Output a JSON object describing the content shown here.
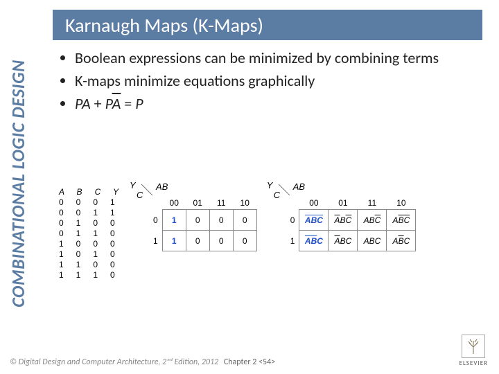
{
  "sidebar_title": "COMBINATIONAL LOGIC DESIGN",
  "title": "Karnaugh Maps (K-Maps)",
  "bullets": [
    "Boolean expressions can be minimized by combining terms",
    "K-maps minimize equations graphically"
  ],
  "equation": {
    "lhs1": "PA",
    "plus": " + ",
    "lhs2_P": "P",
    "lhs2_Abar": "A",
    "eq": " = ",
    "rhs": "P"
  },
  "truth": {
    "headers": [
      "A",
      "B",
      "C",
      "Y"
    ],
    "rows": [
      [
        "0",
        "0",
        "0",
        "1"
      ],
      [
        "0",
        "0",
        "1",
        "1"
      ],
      [
        "0",
        "1",
        "0",
        "0"
      ],
      [
        "0",
        "1",
        "1",
        "0"
      ],
      [
        "1",
        "0",
        "0",
        "0"
      ],
      [
        "1",
        "0",
        "1",
        "0"
      ],
      [
        "1",
        "1",
        "0",
        "0"
      ],
      [
        "1",
        "1",
        "1",
        "0"
      ]
    ]
  },
  "kmap": {
    "ylabel": "Y",
    "ab": "AB",
    "c": "C",
    "col_headers": [
      "00",
      "01",
      "11",
      "10"
    ],
    "row_headers": [
      "0",
      "1"
    ]
  },
  "kmap1_cells": [
    [
      "1",
      "0",
      "0",
      "0"
    ],
    [
      "1",
      "0",
      "0",
      "0"
    ]
  ],
  "kmap2_cells": [
    [
      {
        "t": "ABC",
        "bars": [
          1,
          1,
          1
        ],
        "hl": true
      },
      {
        "t": "ABC",
        "bars": [
          1,
          0,
          1
        ],
        "hl": false
      },
      {
        "t": "ABC",
        "bars": [
          0,
          0,
          1
        ],
        "hl": false
      },
      {
        "t": "ABC",
        "bars": [
          0,
          1,
          1
        ],
        "hl": false
      }
    ],
    [
      {
        "t": "ABC",
        "bars": [
          1,
          1,
          0
        ],
        "hl": true
      },
      {
        "t": "ABC",
        "bars": [
          1,
          0,
          0
        ],
        "hl": false
      },
      {
        "t": "ABC",
        "bars": [
          0,
          0,
          0
        ],
        "hl": false
      },
      {
        "t": "ABC",
        "bars": [
          0,
          1,
          0
        ],
        "hl": false
      }
    ]
  ],
  "footer": {
    "left_pre": "© ",
    "left_title": "Digital Design and Computer Architecture",
    "left_post": ", 2ⁿᵈ Edition, 2012",
    "chapter": "Chapter 2 <54>",
    "publisher": "ELSEVIER"
  },
  "colors": {
    "brand": "#5b7ca3",
    "highlight": "#2050c8",
    "border": "#888"
  }
}
